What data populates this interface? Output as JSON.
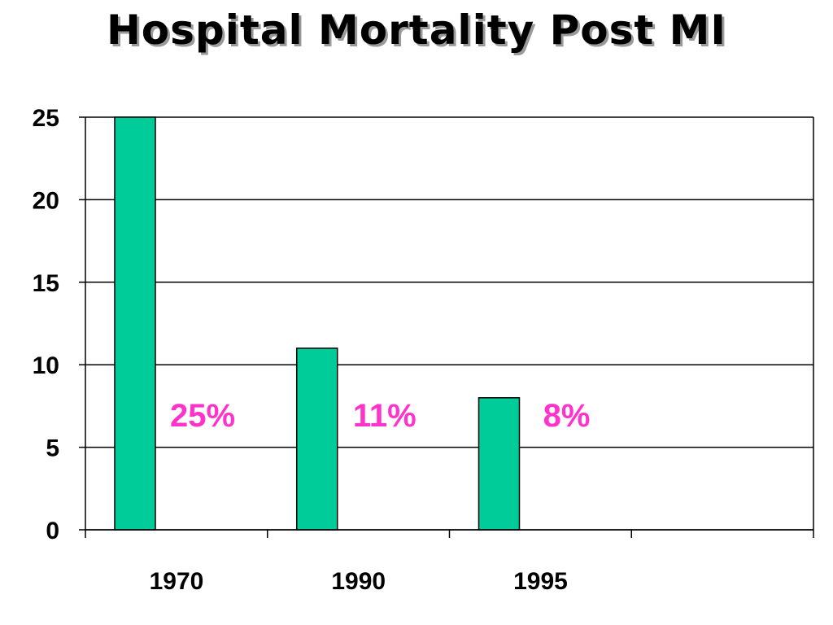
{
  "chart_data": {
    "type": "bar",
    "title": "Hospital Mortality Post MI",
    "xlabel": "",
    "ylabel": "",
    "categories": [
      "1970",
      "1990",
      "1995",
      ""
    ],
    "values": [
      25,
      11,
      8,
      null
    ],
    "data_labels": [
      "25%",
      "11%",
      "8%",
      ""
    ],
    "ylim": [
      0,
      25
    ],
    "yticks": [
      0,
      5,
      10,
      15,
      20,
      25
    ],
    "grid": true,
    "legend": "none",
    "colors": {
      "bar": "#00CC99",
      "bar_border": "#000000",
      "data_label": "#FF33CC",
      "grid": "#000000"
    }
  }
}
